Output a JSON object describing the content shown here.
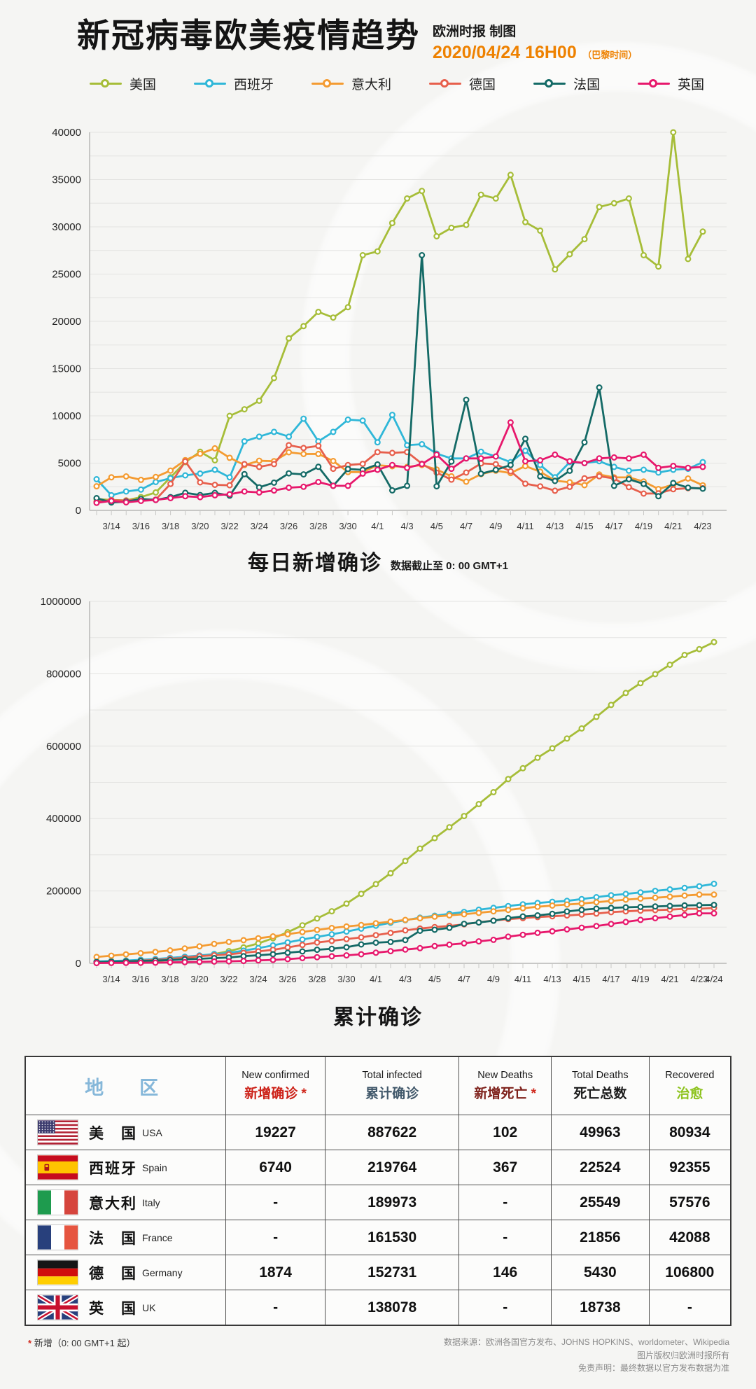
{
  "header": {
    "title": "新冠病毒欧美疫情趋势",
    "publisher": "欧洲时报 制图",
    "datetime": "2020/04/24 16H00",
    "timezone_note": "（巴黎时间）",
    "accent_color": "#ee8100"
  },
  "legend": [
    {
      "label": "美国",
      "key": "usa",
      "color": "#a6bd38"
    },
    {
      "label": "西班牙",
      "key": "spain",
      "color": "#2fb7d8"
    },
    {
      "label": "意大利",
      "key": "italy",
      "color": "#f49b31"
    },
    {
      "label": "德国",
      "key": "germany",
      "color": "#e75f4c"
    },
    {
      "label": "法国",
      "key": "france",
      "color": "#146a66"
    },
    {
      "label": "英国",
      "key": "uk",
      "color": "#e7186c"
    }
  ],
  "chart_data": [
    {
      "id": "daily",
      "type": "line",
      "title": "每日新增确诊",
      "subtitle": "数据截止至 0: 00 GMT+1",
      "xlabel": "",
      "ylabel": "",
      "ylim": [
        0,
        40000
      ],
      "ytick_step": 5000,
      "grid_step": 2500,
      "grid": true,
      "legend_position": "top",
      "x": [
        "3/13",
        "3/14",
        "3/15",
        "3/16",
        "3/17",
        "3/18",
        "3/19",
        "3/20",
        "3/21",
        "3/22",
        "3/23",
        "3/24",
        "3/25",
        "3/26",
        "3/27",
        "3/28",
        "3/29",
        "3/30",
        "3/31",
        "4/1",
        "4/2",
        "4/3",
        "4/4",
        "4/5",
        "4/6",
        "4/7",
        "4/8",
        "4/9",
        "4/10",
        "4/11",
        "4/12",
        "4/13",
        "4/14",
        "4/15",
        "4/16",
        "4/17",
        "4/18",
        "4/19",
        "4/20",
        "4/21",
        "4/22",
        "4/23"
      ],
      "series": [
        {
          "name": "美国",
          "key": "usa",
          "color": "#a6bd38",
          "values": [
            1200,
            1100,
            1050,
            1400,
            1900,
            3500,
            5100,
            6200,
            5300,
            10000,
            10700,
            11600,
            14000,
            18200,
            19500,
            21000,
            20400,
            21500,
            27000,
            27400,
            30400,
            33000,
            33800,
            29000,
            29900,
            30200,
            33400,
            33000,
            35500,
            30500,
            29600,
            25500,
            27100,
            28700,
            32100,
            32500,
            33000,
            27000,
            25800,
            40000,
            26600,
            29500
          ]
        },
        {
          "name": "西班牙",
          "key": "spain",
          "color": "#2fb7d8",
          "values": [
            3300,
            1600,
            2000,
            2200,
            3000,
            3400,
            3700,
            3900,
            4300,
            3500,
            7300,
            7800,
            8300,
            7800,
            9700,
            7300,
            8300,
            9600,
            9500,
            7200,
            10100,
            6900,
            7000,
            6000,
            5500,
            5500,
            6200,
            5700,
            5100,
            6300,
            4800,
            3500,
            5100,
            5000,
            5200,
            4600,
            4200,
            4300,
            4000,
            4300,
            4400,
            5100
          ]
        },
        {
          "name": "意大利",
          "key": "italy",
          "color": "#f49b31",
          "values": [
            2550,
            3500,
            3590,
            3230,
            3530,
            4210,
            5320,
            5990,
            6560,
            5560,
            4790,
            5250,
            5210,
            6150,
            5960,
            5970,
            5220,
            4050,
            4050,
            4780,
            4670,
            4590,
            4800,
            4320,
            3600,
            3040,
            3840,
            4200,
            3950,
            4690,
            4090,
            3150,
            2970,
            2670,
            3790,
            3490,
            3490,
            3050,
            2260,
            2730,
            3370,
            2650
          ]
        },
        {
          "name": "德国",
          "key": "germany",
          "color": "#e75f4c",
          "values": [
            930,
            1080,
            1040,
            1170,
            1140,
            2800,
            5180,
            2960,
            2700,
            2660,
            4900,
            4600,
            4900,
            6900,
            6600,
            6820,
            4400,
            4790,
            4920,
            6170,
            6080,
            6170,
            4930,
            3990,
            3250,
            4000,
            4970,
            4890,
            4130,
            2820,
            2540,
            2080,
            2490,
            3390,
            3610,
            3380,
            2460,
            1780,
            1790,
            2240,
            2350,
            2340
          ]
        },
        {
          "name": "法国",
          "key": "france",
          "color": "#146a66",
          "values": [
            1300,
            840,
            920,
            1210,
            1100,
            1400,
            1860,
            1620,
            1850,
            1560,
            3840,
            2440,
            2930,
            3920,
            3810,
            4610,
            2600,
            4380,
            4290,
            4860,
            2120,
            2600,
            27000,
            2550,
            5170,
            11700,
            3880,
            4290,
            4790,
            7580,
            3600,
            3110,
            4190,
            7200,
            13000,
            2600,
            3300,
            2800,
            1500,
            2900,
            2400,
            2300
          ]
        },
        {
          "name": "英国",
          "key": "uk",
          "color": "#e7186c",
          "values": [
            800,
            1000,
            850,
            1000,
            1100,
            1300,
            1500,
            1400,
            1600,
            1700,
            2000,
            1900,
            2100,
            2400,
            2500,
            3000,
            2600,
            2600,
            3900,
            4300,
            4800,
            4500,
            4900,
            5900,
            4400,
            5500,
            5500,
            5700,
            9300,
            5200,
            5300,
            5900,
            5200,
            5000,
            5500,
            5600,
            5500,
            5900,
            4500,
            4700,
            4500,
            4600
          ]
        }
      ]
    },
    {
      "id": "cumulative",
      "type": "line",
      "title": "累计确诊",
      "xlabel": "",
      "ylabel": "",
      "ylim": [
        0,
        1000000
      ],
      "ytick_step": 200000,
      "grid_step": 100000,
      "grid": true,
      "legend_position": "top",
      "x": [
        "3/13",
        "3/14",
        "3/15",
        "3/16",
        "3/17",
        "3/18",
        "3/19",
        "3/20",
        "3/21",
        "3/22",
        "3/23",
        "3/24",
        "3/25",
        "3/26",
        "3/27",
        "3/28",
        "3/29",
        "3/30",
        "3/31",
        "4/1",
        "4/2",
        "4/3",
        "4/4",
        "4/5",
        "4/6",
        "4/7",
        "4/8",
        "4/9",
        "4/10",
        "4/11",
        "4/12",
        "4/13",
        "4/14",
        "4/15",
        "4/16",
        "4/17",
        "4/18",
        "4/19",
        "4/20",
        "4/21",
        "4/22",
        "4/23",
        "4/24"
      ],
      "series": [
        {
          "name": "美国",
          "key": "usa",
          "color": "#a6bd38",
          "values": [
            2200,
            2700,
            3500,
            4600,
            6400,
            9200,
            14000,
            19600,
            25500,
            33700,
            44000,
            55200,
            69200,
            86000,
            105000,
            124000,
            144000,
            165000,
            192000,
            219000,
            249000,
            283000,
            317000,
            346000,
            376000,
            407000,
            440000,
            473000,
            509000,
            539000,
            568000,
            594000,
            621000,
            649000,
            681000,
            714000,
            747000,
            774000,
            799000,
            825000,
            852000,
            868000,
            887622
          ]
        },
        {
          "name": "西班牙",
          "key": "spain",
          "color": "#2fb7d8",
          "values": [
            5200,
            6400,
            7800,
            9900,
            11800,
            14800,
            18100,
            21600,
            25500,
            28800,
            35100,
            42000,
            49500,
            57800,
            65700,
            73200,
            80100,
            87900,
            95900,
            104100,
            112100,
            119200,
            126200,
            131600,
            136700,
            141900,
            148200,
            153200,
            158300,
            163000,
            166800,
            170100,
            172500,
            177600,
            182800,
            188100,
            191700,
            195900,
            200200,
            204200,
            208400,
            213000,
            219764
          ]
        },
        {
          "name": "意大利",
          "key": "italy",
          "color": "#f49b31",
          "values": [
            17660,
            21160,
            24750,
            27980,
            31510,
            35710,
            41035,
            47021,
            53578,
            59138,
            63927,
            69176,
            74386,
            80539,
            86498,
            92472,
            97689,
            101739,
            105792,
            110574,
            115242,
            119827,
            124632,
            128948,
            132547,
            135586,
            139422,
            143626,
            147577,
            152271,
            156363,
            159516,
            162488,
            165155,
            168941,
            172434,
            175925,
            178972,
            181228,
            183957,
            187327,
            189973,
            189973
          ]
        },
        {
          "name": "德国",
          "key": "germany",
          "color": "#e75f4c",
          "values": [
            3675,
            4585,
            5795,
            7272,
            9257,
            12327,
            15320,
            19848,
            22213,
            24873,
            29056,
            32986,
            37323,
            43938,
            50871,
            57695,
            62095,
            66885,
            71808,
            77981,
            84063,
            91159,
            96092,
            100123,
            103374,
            107663,
            113296,
            118235,
            122171,
            124908,
            127854,
            130072,
            132210,
            134753,
            137439,
            141397,
            143724,
            145742,
            147065,
            148291,
            150648,
            150857,
            152731
          ]
        },
        {
          "name": "法国",
          "key": "france",
          "color": "#146a66",
          "values": [
            3661,
            4499,
            5423,
            6633,
            7730,
            9134,
            10995,
            12612,
            14459,
            16018,
            19856,
            22300,
            25233,
            29155,
            32964,
            37575,
            40174,
            44550,
            52128,
            56989,
            59105,
            64338,
            89953,
            92839,
            98010,
            109069,
            112950,
            117749,
            124869,
            129654,
            132591,
            136779,
            143303,
            147863,
            151000,
            153100,
            154700,
            155900,
            157100,
            158600,
            159900,
            160800,
            161530
          ]
        },
        {
          "name": "英国",
          "key": "uk",
          "color": "#e7186c",
          "values": [
            798,
            1140,
            1372,
            1543,
            1950,
            2626,
            3269,
            3983,
            5018,
            5683,
            6650,
            8077,
            9529,
            11658,
            14543,
            17089,
            19522,
            22141,
            25150,
            29474,
            33718,
            38168,
            41903,
            47806,
            51608,
            55242,
            60733,
            65077,
            73758,
            78991,
            84279,
            88621,
            93873,
            98476,
            103093,
            108692,
            114217,
            120067,
            124743,
            129044,
            133495,
            138078,
            138078
          ]
        }
      ]
    }
  ],
  "table": {
    "columns": [
      {
        "cn": "地　区",
        "color": "#85b7d9"
      },
      {
        "en": "New confirmed",
        "cn": "新增确诊",
        "star": true,
        "color": "#cc2118"
      },
      {
        "en": "Total infected",
        "cn": "累计确诊",
        "star": false,
        "color": "#42596b"
      },
      {
        "en": "New Deaths",
        "cn": "新增死亡",
        "star": true,
        "color": "#7e211b"
      },
      {
        "en": "Total Deaths",
        "cn": "死亡总数",
        "star": false,
        "color": "#1a1a1a"
      },
      {
        "en": "Recovered",
        "cn": "治愈",
        "star": false,
        "color": "#8ec31f"
      }
    ],
    "rows": [
      {
        "flag": "us",
        "cn": "美　国",
        "en": "USA",
        "values": [
          "19227",
          "887622",
          "102",
          "49963",
          "80934"
        ]
      },
      {
        "flag": "es",
        "cn": "西班牙",
        "en": "Spain",
        "values": [
          "6740",
          "219764",
          "367",
          "22524",
          "92355"
        ]
      },
      {
        "flag": "it",
        "cn": "意大利",
        "en": "Italy",
        "values": [
          "-",
          "189973",
          "-",
          "25549",
          "57576"
        ]
      },
      {
        "flag": "fr",
        "cn": "法　国",
        "en": "France",
        "values": [
          "-",
          "161530",
          "-",
          "21856",
          "42088"
        ]
      },
      {
        "flag": "de",
        "cn": "德　国",
        "en": "Germany",
        "values": [
          "1874",
          "152731",
          "146",
          "5430",
          "106800"
        ]
      },
      {
        "flag": "gb",
        "cn": "英　国",
        "en": "UK",
        "values": [
          "-",
          "138078",
          "-",
          "18738",
          "-"
        ]
      }
    ]
  },
  "footer": {
    "note_mark": "*",
    "note": "新增（0: 00 GMT+1 起）",
    "sources": [
      "数据来源：欧洲各国官方发布、JOHNS HOPKINS、worldometer、Wikipedia",
      "图片版权归欧洲时报所有",
      "免责声明：最终数据以官方发布数据为准"
    ]
  }
}
